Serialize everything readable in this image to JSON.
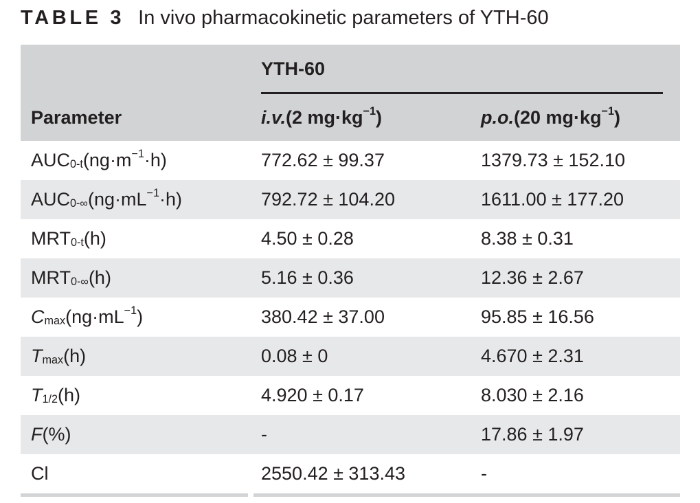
{
  "title": {
    "tag": "TABLE 3",
    "text": "In vivo pharmacokinetic parameters of YTH-60"
  },
  "table": {
    "group_header": "YTH-60",
    "columns": [
      "Parameter",
      "*i.v.* (2 mg·kg^−1^)",
      "*p.o.* (20 mg·kg^−1^)"
    ],
    "rows": [
      {
        "param": "AUC~0-t~ (ng·m^−1^·h)",
        "iv": "772.62 ± 99.37",
        "po": "1379.73 ± 152.10"
      },
      {
        "param": "AUC~0-∞~ (ng·mL^−1^·h)",
        "iv": "792.72 ± 104.20",
        "po": "1611.00 ± 177.20"
      },
      {
        "param": "MRT~0-t~ (h)",
        "iv": "4.50 ± 0.28",
        "po": "8.38 ± 0.31"
      },
      {
        "param": "MRT~0-∞~ (h)",
        "iv": "5.16 ± 0.36",
        "po": "12.36 ± 2.67"
      },
      {
        "param": "*C*~max~ (ng·mL^−1^)",
        "iv": "380.42 ± 37.00",
        "po": "95.85 ± 16.56"
      },
      {
        "param": "*T*~max~ (h)",
        "iv": "0.08 ± 0",
        "po": "4.670 ± 2.31"
      },
      {
        "param": "*T*~1/2~ (h)",
        "iv": "4.920 ± 0.17",
        "po": "8.030 ± 2.16"
      },
      {
        "param": "*F* (%)",
        "iv": "-",
        "po": "17.86 ± 1.97"
      },
      {
        "param": "Cl",
        "iv": "2550.42 ± 313.43",
        "po": "-"
      }
    ]
  },
  "colors": {
    "header_bg": "#d1d3d4",
    "stripe_bg": "#e7e8e9",
    "text": "#231f20",
    "rule": "#231f20",
    "bottom_bar": "#d2d4d5"
  }
}
